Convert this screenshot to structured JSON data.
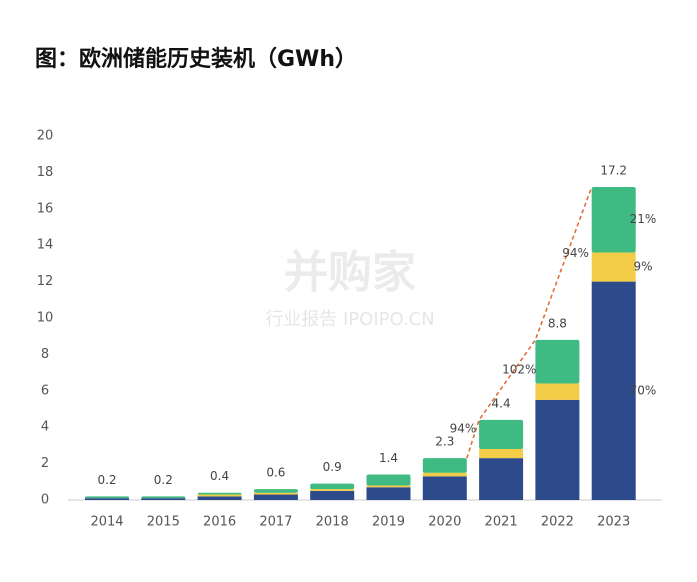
{
  "title": "图：欧洲储能历史装机（GWh）",
  "watermark": {
    "brand": "并购家",
    "site": "行业报告 IPOIPO.CN"
  },
  "chart_data": {
    "type": "stacked-bar",
    "categories": [
      "2014",
      "2015",
      "2016",
      "2017",
      "2018",
      "2019",
      "2020",
      "2021",
      "2022",
      "2023"
    ],
    "series": [
      {
        "color": "#2d4a8a",
        "values": [
          0.1,
          0.1,
          0.2,
          0.3,
          0.5,
          0.7,
          1.3,
          2.3,
          5.5,
          12.0
        ]
      },
      {
        "color": "#f4cd48",
        "values": [
          0,
          0,
          0.1,
          0.1,
          0.1,
          0.1,
          0.2,
          0.5,
          0.9,
          1.6
        ]
      },
      {
        "color": "#3fba82",
        "values": [
          0.1,
          0.1,
          0.1,
          0.2,
          0.3,
          0.6,
          0.8,
          1.6,
          2.4,
          3.6
        ]
      }
    ],
    "totals": [
      0.2,
      0.2,
      0.4,
      0.6,
      0.9,
      1.4,
      2.3,
      4.4,
      8.8,
      17.2
    ],
    "growth_labels": [
      "94%",
      "102%",
      "94%"
    ],
    "share_labels": [
      "70%",
      "9%",
      "21%"
    ],
    "ylim": [
      0,
      20
    ],
    "yticks": [
      0,
      2,
      4,
      6,
      8,
      10,
      12,
      14,
      16,
      18,
      20
    ],
    "grid": false
  }
}
